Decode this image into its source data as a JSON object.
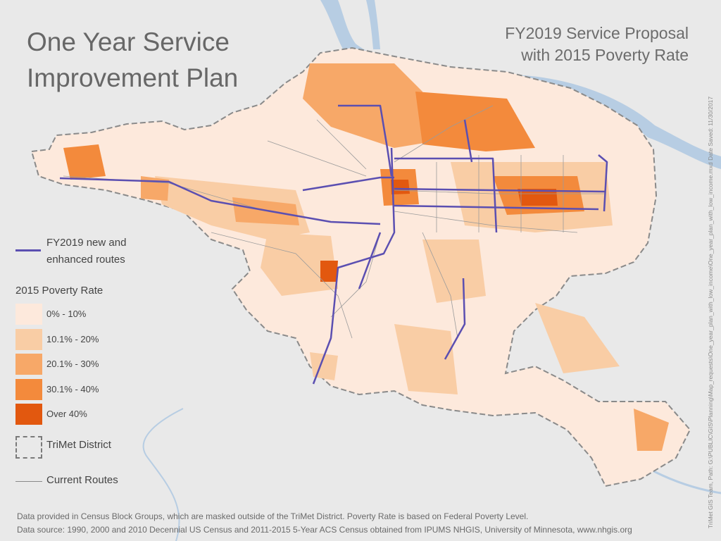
{
  "title": {
    "line1": "One Year Service",
    "line2": "Improvement Plan"
  },
  "subtitle": {
    "line1": "FY2019 Service Proposal",
    "line2": "with 2015 Poverty Rate"
  },
  "legend": {
    "route_label_line1": "FY2019 new and",
    "route_label_line2": "enhanced routes",
    "route_color": "#5b4fb1",
    "poverty_heading": "2015 Poverty Rate",
    "classes": [
      {
        "label": "0% - 10%",
        "color": "#fde9dc"
      },
      {
        "label": "10.1% - 20%",
        "color": "#f9cda5"
      },
      {
        "label": "20.1% - 30%",
        "color": "#f7a868"
      },
      {
        "label": "30.1% - 40%",
        "color": "#f38a3c"
      },
      {
        "label": "Over 40%",
        "color": "#e2580f"
      }
    ],
    "district_label": "TriMet District",
    "routes_label": "Current Routes"
  },
  "notes": {
    "line1": "Data provided in Census Block Groups, which are masked outside of the TriMet District. Poverty Rate is based on Federal Poverty Level.",
    "line2": "Data source: 1990, 2000 and 2010 Decennial US Census and 2011-2015 5-Year ACS Census obtained from IPUMS NHGIS, University of Minnesota, www.nhgis.org"
  },
  "side_note": "TriMet GIS Team, Path: G:\\PUBLIC\\GIS\\Planning\\Map_requests\\One_year_plan_with_low_income\\One_year_plan_with_low_income.mxd Date Saved: 11/30/2017",
  "colors": {
    "background": "#e9e9e9",
    "river": "#b7cde3",
    "district_fill": "#fde9dc",
    "route": "#5b4fb1",
    "current_routes": "#9b9b9b"
  }
}
